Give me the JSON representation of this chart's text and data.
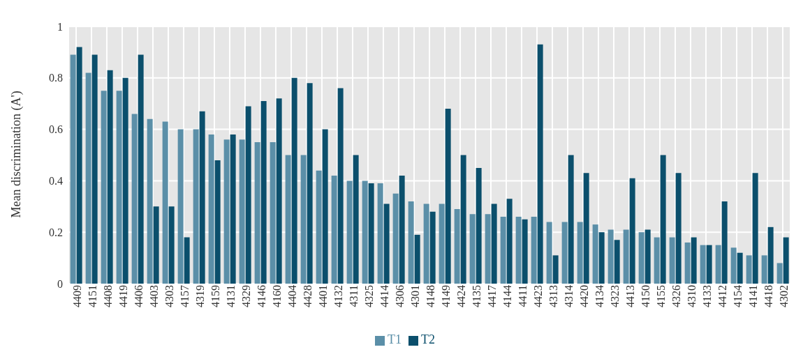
{
  "chart_data": {
    "type": "bar",
    "ylabel": "Mean discrimination (A')",
    "categories": [
      "4409",
      "4151",
      "4408",
      "4419",
      "4406",
      "4403",
      "4303",
      "4157",
      "4319",
      "4159",
      "4131",
      "4329",
      "4146",
      "4160",
      "4404",
      "4428",
      "4401",
      "4132",
      "4311",
      "4325",
      "4414",
      "4306",
      "4301",
      "4148",
      "4149",
      "4424",
      "4135",
      "4417",
      "4144",
      "4411",
      "4423",
      "4313",
      "4314",
      "4420",
      "4134",
      "4323",
      "4413",
      "4150",
      "4155",
      "4326",
      "4310",
      "4133",
      "4412",
      "4154",
      "4141",
      "4418",
      "4302"
    ],
    "series": [
      {
        "name": "T1",
        "color": "#5b8fa8",
        "values": [
          0.89,
          0.82,
          0.75,
          0.75,
          0.66,
          0.64,
          0.63,
          0.6,
          0.6,
          0.58,
          0.56,
          0.56,
          0.55,
          0.55,
          0.5,
          0.5,
          0.44,
          0.42,
          0.4,
          0.4,
          0.39,
          0.35,
          0.32,
          0.31,
          0.31,
          0.29,
          0.27,
          0.27,
          0.26,
          0.26,
          0.26,
          0.24,
          0.24,
          0.24,
          0.23,
          0.21,
          0.21,
          0.2,
          0.18,
          0.18,
          0.16,
          0.15,
          0.15,
          0.14,
          0.11,
          0.11,
          0.08
        ]
      },
      {
        "name": "T2",
        "color": "#0b4f6c",
        "values": [
          0.92,
          0.89,
          0.83,
          0.8,
          0.89,
          0.3,
          0.3,
          0.18,
          0.67,
          0.48,
          0.58,
          0.69,
          0.71,
          0.72,
          0.8,
          0.78,
          0.6,
          0.76,
          0.5,
          0.39,
          0.31,
          0.42,
          0.19,
          0.28,
          0.68,
          0.5,
          0.45,
          0.31,
          0.33,
          0.25,
          0.93,
          0.11,
          0.5,
          0.43,
          0.2,
          0.17,
          0.41,
          0.21,
          0.5,
          0.43,
          0.18,
          0.15,
          0.32,
          0.12,
          0.43,
          0.22,
          0.18
        ]
      }
    ],
    "ylim": [
      0,
      1
    ],
    "yticks": [
      0,
      0.2,
      0.4,
      0.6,
      0.8,
      1
    ],
    "grid": true,
    "legend": "bottom"
  }
}
